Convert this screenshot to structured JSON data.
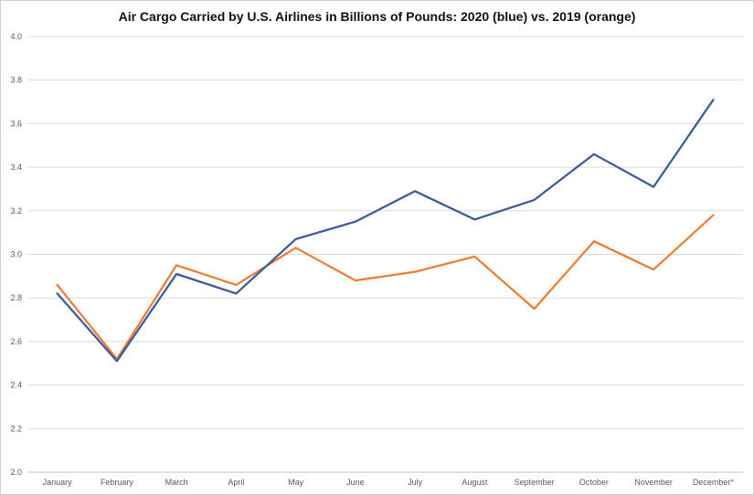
{
  "chart_data": {
    "type": "line",
    "title": "Air Cargo Carried by U.S. Airlines in Billions of Pounds: 2020 (blue) vs. 2019 (orange)",
    "xlabel": "",
    "ylabel": "",
    "categories": [
      "January",
      "February",
      "March",
      "April",
      "May",
      "June",
      "July",
      "August",
      "September",
      "October",
      "November",
      "December*"
    ],
    "ylim": [
      2.0,
      4.0
    ],
    "yticks": [
      "2.0",
      "2.2",
      "2.4",
      "2.6",
      "2.8",
      "3.0",
      "3.2",
      "3.4",
      "3.6",
      "3.8",
      "4.0"
    ],
    "grid": true,
    "legend": "none",
    "series": [
      {
        "color": "#3b5a9b",
        "values": [
          2.82,
          2.51,
          2.91,
          2.82,
          3.07,
          3.15,
          3.29,
          3.16,
          3.25,
          3.46,
          3.31,
          3.71
        ]
      },
      {
        "color": "#ed7d31",
        "values": [
          2.86,
          2.52,
          2.95,
          2.86,
          3.03,
          2.88,
          2.92,
          2.99,
          2.75,
          3.06,
          2.93,
          3.18
        ]
      }
    ]
  }
}
